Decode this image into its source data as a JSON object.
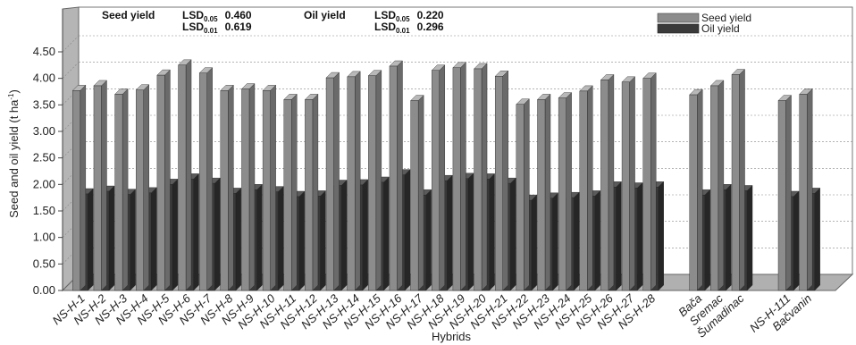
{
  "chart_data": {
    "type": "bar",
    "title": "",
    "xlabel": "Hybrids",
    "ylabel_main": "Seed and oil yield (t ha",
    "ylabel_sup": "-1",
    "ylabel_end": ")",
    "ylim": [
      0,
      4.5
    ],
    "yticks": [
      "0.00",
      "0.50",
      "1.00",
      "1.50",
      "2.00",
      "2.50",
      "3.00",
      "3.50",
      "4.00",
      "4.50"
    ],
    "grid": true,
    "legend_position": "top-right",
    "categories": [
      "NS-H-1",
      "NS-H-2",
      "NS-H-3",
      "NS-H-4",
      "NS-H-5",
      "NS-H-6",
      "NS-H-7",
      "NS-H-8",
      "NS-H-9",
      "NS-H-10",
      "NS-H-11",
      "NS-H-12",
      "NS-H-13",
      "NS-H-14",
      "NS-H-15",
      "NS-H-16",
      "NS-H-17",
      "NS-H-18",
      "NS-H-19",
      "NS-H-20",
      "NS-H-21",
      "NS-H-22",
      "NS-H-23",
      "NS-H-24",
      "NS-H-25",
      "NS-H-26",
      "NS-H-27",
      "NS-H-28",
      "Bača",
      "Sremac",
      "Šumadinac",
      "NS-H-111",
      "Bačvanin"
    ],
    "groups": [
      28,
      3,
      2
    ],
    "series": [
      {
        "name": "Seed yield",
        "color": "#8c8c8c",
        "values": [
          3.77,
          3.86,
          3.7,
          3.78,
          4.06,
          4.25,
          4.1,
          3.77,
          3.8,
          3.77,
          3.6,
          3.6,
          4.01,
          4.03,
          4.05,
          4.23,
          3.58,
          4.15,
          4.2,
          4.18,
          4.04,
          3.51,
          3.6,
          3.63,
          3.76,
          3.97,
          3.93,
          4.0,
          3.69,
          3.86,
          4.07,
          3.58,
          3.7
        ]
      },
      {
        "name": "Oil yield",
        "color": "#3a3a3a",
        "values": [
          1.82,
          1.87,
          1.81,
          1.84,
          2.0,
          2.1,
          2.02,
          1.83,
          1.9,
          1.86,
          1.77,
          1.78,
          1.98,
          1.99,
          2.04,
          2.18,
          1.8,
          2.07,
          2.11,
          2.1,
          2.02,
          1.7,
          1.74,
          1.75,
          1.78,
          1.95,
          1.93,
          1.95,
          1.8,
          1.9,
          1.88,
          1.77,
          1.83
        ]
      }
    ],
    "annotations": {
      "seed_label": "Seed yield",
      "oil_label": "Oil yield",
      "lsd_prefix": "LSD",
      "sub_005": "0.05",
      "sub_001": "0.01",
      "seed_lsd_005": "0.460",
      "seed_lsd_001": "0.619",
      "oil_lsd_005": "0.220",
      "oil_lsd_001": "0.296"
    }
  }
}
